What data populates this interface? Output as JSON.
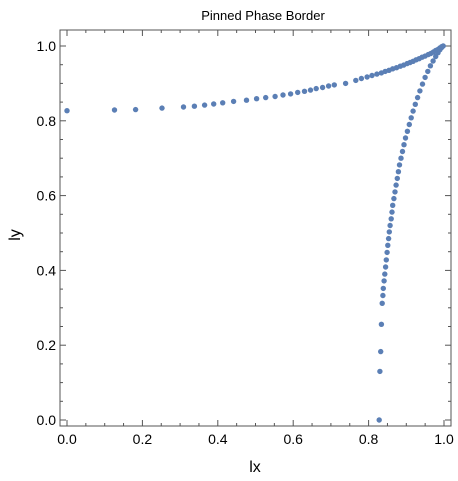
{
  "chart_data": {
    "type": "scatter",
    "title": "Pinned Phase Border",
    "xlabel": "lx",
    "ylabel": "ly",
    "xlim": [
      0.0,
      1.0
    ],
    "ylim": [
      0.0,
      1.0
    ],
    "x_ticks": [
      "0.0",
      "0.2",
      "0.4",
      "0.6",
      "0.8",
      "1.0"
    ],
    "y_ticks": [
      "0.0",
      "0.2",
      "0.4",
      "0.6",
      "0.8",
      "1.0"
    ],
    "grid": false,
    "marker_color": "#5b7fb5",
    "series": [
      {
        "values": [
          [
            0.0,
            0.827
          ],
          [
            0.126,
            0.829
          ],
          [
            0.182,
            0.83
          ],
          [
            0.252,
            0.834
          ],
          [
            0.309,
            0.837
          ],
          [
            0.338,
            0.839
          ],
          [
            0.365,
            0.842
          ],
          [
            0.389,
            0.845
          ],
          [
            0.413,
            0.848
          ],
          [
            0.442,
            0.852
          ],
          [
            0.476,
            0.855
          ],
          [
            0.503,
            0.859
          ],
          [
            0.527,
            0.862
          ],
          [
            0.552,
            0.865
          ],
          [
            0.573,
            0.869
          ],
          [
            0.593,
            0.872
          ],
          [
            0.612,
            0.876
          ],
          [
            0.63,
            0.879
          ],
          [
            0.646,
            0.882
          ],
          [
            0.661,
            0.886
          ],
          [
            0.678,
            0.889
          ],
          [
            0.694,
            0.893
          ],
          [
            0.709,
            0.896
          ],
          [
            0.739,
            0.9
          ],
          [
            0.766,
            0.908
          ],
          [
            0.781,
            0.913
          ],
          [
            0.796,
            0.917
          ],
          [
            0.809,
            0.921
          ],
          [
            0.822,
            0.925
          ],
          [
            0.834,
            0.928
          ],
          [
            0.844,
            0.932
          ],
          [
            0.854,
            0.935
          ],
          [
            0.864,
            0.939
          ],
          [
            0.874,
            0.942
          ],
          [
            0.884,
            0.946
          ],
          [
            0.893,
            0.949
          ],
          [
            0.902,
            0.953
          ],
          [
            0.91,
            0.956
          ],
          [
            0.918,
            0.959
          ],
          [
            0.926,
            0.963
          ],
          [
            0.934,
            0.966
          ],
          [
            0.942,
            0.97
          ],
          [
            0.95,
            0.973
          ],
          [
            0.958,
            0.977
          ],
          [
            0.965,
            0.98
          ],
          [
            0.972,
            0.984
          ],
          [
            0.978,
            0.988
          ],
          [
            0.984,
            0.991
          ],
          [
            0.989,
            0.995
          ],
          [
            0.994,
            0.998
          ],
          [
            0.998,
            1.0
          ],
          [
            0.828,
            0.0
          ],
          [
            0.83,
            0.13
          ],
          [
            0.832,
            0.183
          ],
          [
            0.834,
            0.256
          ],
          [
            0.836,
            0.312
          ],
          [
            0.838,
            0.333
          ],
          [
            0.839,
            0.352
          ],
          [
            0.841,
            0.372
          ],
          [
            0.843,
            0.39
          ],
          [
            0.845,
            0.409
          ],
          [
            0.847,
            0.428
          ],
          [
            0.849,
            0.448
          ],
          [
            0.851,
            0.467
          ],
          [
            0.853,
            0.485
          ],
          [
            0.855,
            0.503
          ],
          [
            0.857,
            0.52
          ],
          [
            0.86,
            0.538
          ],
          [
            0.862,
            0.556
          ],
          [
            0.864,
            0.574
          ],
          [
            0.867,
            0.592
          ],
          [
            0.87,
            0.61
          ],
          [
            0.873,
            0.628
          ],
          [
            0.876,
            0.646
          ],
          [
            0.879,
            0.664
          ],
          [
            0.882,
            0.682
          ],
          [
            0.886,
            0.7
          ],
          [
            0.89,
            0.718
          ],
          [
            0.894,
            0.736
          ],
          [
            0.898,
            0.754
          ],
          [
            0.903,
            0.772
          ],
          [
            0.908,
            0.79
          ],
          [
            0.913,
            0.808
          ],
          [
            0.918,
            0.826
          ],
          [
            0.924,
            0.844
          ],
          [
            0.93,
            0.862
          ],
          [
            0.936,
            0.88
          ],
          [
            0.943,
            0.898
          ],
          [
            0.95,
            0.916
          ],
          [
            0.957,
            0.932
          ],
          [
            0.964,
            0.947
          ],
          [
            0.971,
            0.96
          ],
          [
            0.978,
            0.972
          ],
          [
            0.984,
            0.982
          ],
          [
            0.989,
            0.99
          ],
          [
            0.994,
            0.996
          ]
        ]
      }
    ]
  }
}
